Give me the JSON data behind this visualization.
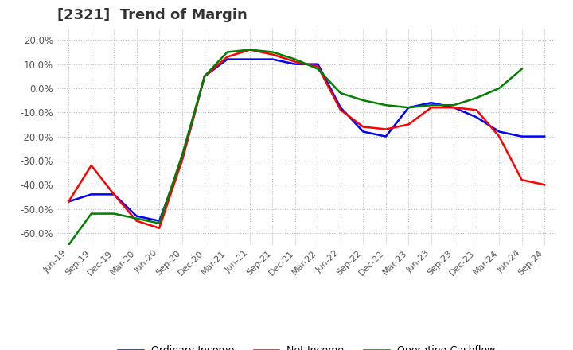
{
  "title": "[2321]  Trend of Margin",
  "title_fontsize": 13,
  "background_color": "#ffffff",
  "grid_color": "#bbbbbb",
  "ylim": [
    -0.65,
    0.25
  ],
  "yticks": [
    0.2,
    0.1,
    0.0,
    -0.1,
    -0.2,
    -0.3,
    -0.4,
    -0.5,
    -0.6
  ],
  "x_labels": [
    "Jun-19",
    "Sep-19",
    "Dec-19",
    "Mar-20",
    "Jun-20",
    "Sep-20",
    "Dec-20",
    "Mar-21",
    "Jun-21",
    "Sep-21",
    "Dec-21",
    "Mar-22",
    "Jun-22",
    "Sep-22",
    "Dec-22",
    "Mar-23",
    "Jun-23",
    "Sep-23",
    "Dec-23",
    "Mar-24",
    "Jun-24",
    "Sep-24"
  ],
  "ordinary_income": [
    -0.47,
    -0.44,
    -0.44,
    -0.53,
    -0.55,
    -0.3,
    0.05,
    0.12,
    0.12,
    0.12,
    0.1,
    0.1,
    -0.08,
    -0.18,
    -0.2,
    -0.08,
    -0.06,
    -0.08,
    -0.12,
    -0.18,
    -0.2,
    -0.2
  ],
  "net_income": [
    -0.47,
    -0.32,
    -0.44,
    -0.55,
    -0.58,
    -0.3,
    0.05,
    0.13,
    0.16,
    0.14,
    0.11,
    0.09,
    -0.09,
    -0.16,
    -0.17,
    -0.15,
    -0.08,
    -0.08,
    -0.09,
    -0.2,
    -0.38,
    -0.4
  ],
  "operating_cashflow": [
    -0.65,
    -0.52,
    -0.52,
    -0.54,
    -0.56,
    -0.28,
    0.05,
    0.15,
    0.16,
    0.15,
    0.12,
    0.08,
    -0.02,
    -0.05,
    -0.07,
    -0.08,
    -0.07,
    -0.07,
    -0.04,
    0.0,
    0.08,
    null
  ],
  "line_colors": {
    "ordinary_income": "#0000ff",
    "net_income": "#ff0000",
    "operating_cashflow": "#008000"
  },
  "line_width": 1.8,
  "legend_labels": {
    "ordinary_income": "Ordinary Income",
    "net_income": "Net Income",
    "operating_cashflow": "Operating Cashflow"
  }
}
